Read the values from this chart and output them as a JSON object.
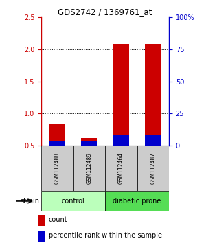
{
  "title": "GDS2742 / 1369761_at",
  "samples": [
    "GSM112488",
    "GSM112489",
    "GSM112464",
    "GSM112487"
  ],
  "red_values": [
    0.83,
    0.62,
    2.08,
    2.08
  ],
  "blue_values": [
    0.08,
    0.07,
    0.17,
    0.17
  ],
  "ylim_left": [
    0.5,
    2.5
  ],
  "ylim_right": [
    0,
    100
  ],
  "yticks_left": [
    0.5,
    1.0,
    1.5,
    2.0,
    2.5
  ],
  "yticks_right": [
    0,
    25,
    50,
    75,
    100
  ],
  "ytick_labels_right": [
    "0",
    "25",
    "50",
    "75",
    "100%"
  ],
  "left_color": "#cc0000",
  "right_color": "#0000cc",
  "bar_width": 0.5,
  "grid_lines": [
    1.0,
    1.5,
    2.0
  ],
  "control_color": "#bbffbb",
  "diabetic_color": "#55dd55",
  "sample_cell_color": "#cccccc",
  "legend_items": [
    {
      "color": "#cc0000",
      "label": "count"
    },
    {
      "color": "#0000cc",
      "label": "percentile rank within the sample"
    }
  ],
  "strain_label": "strain"
}
